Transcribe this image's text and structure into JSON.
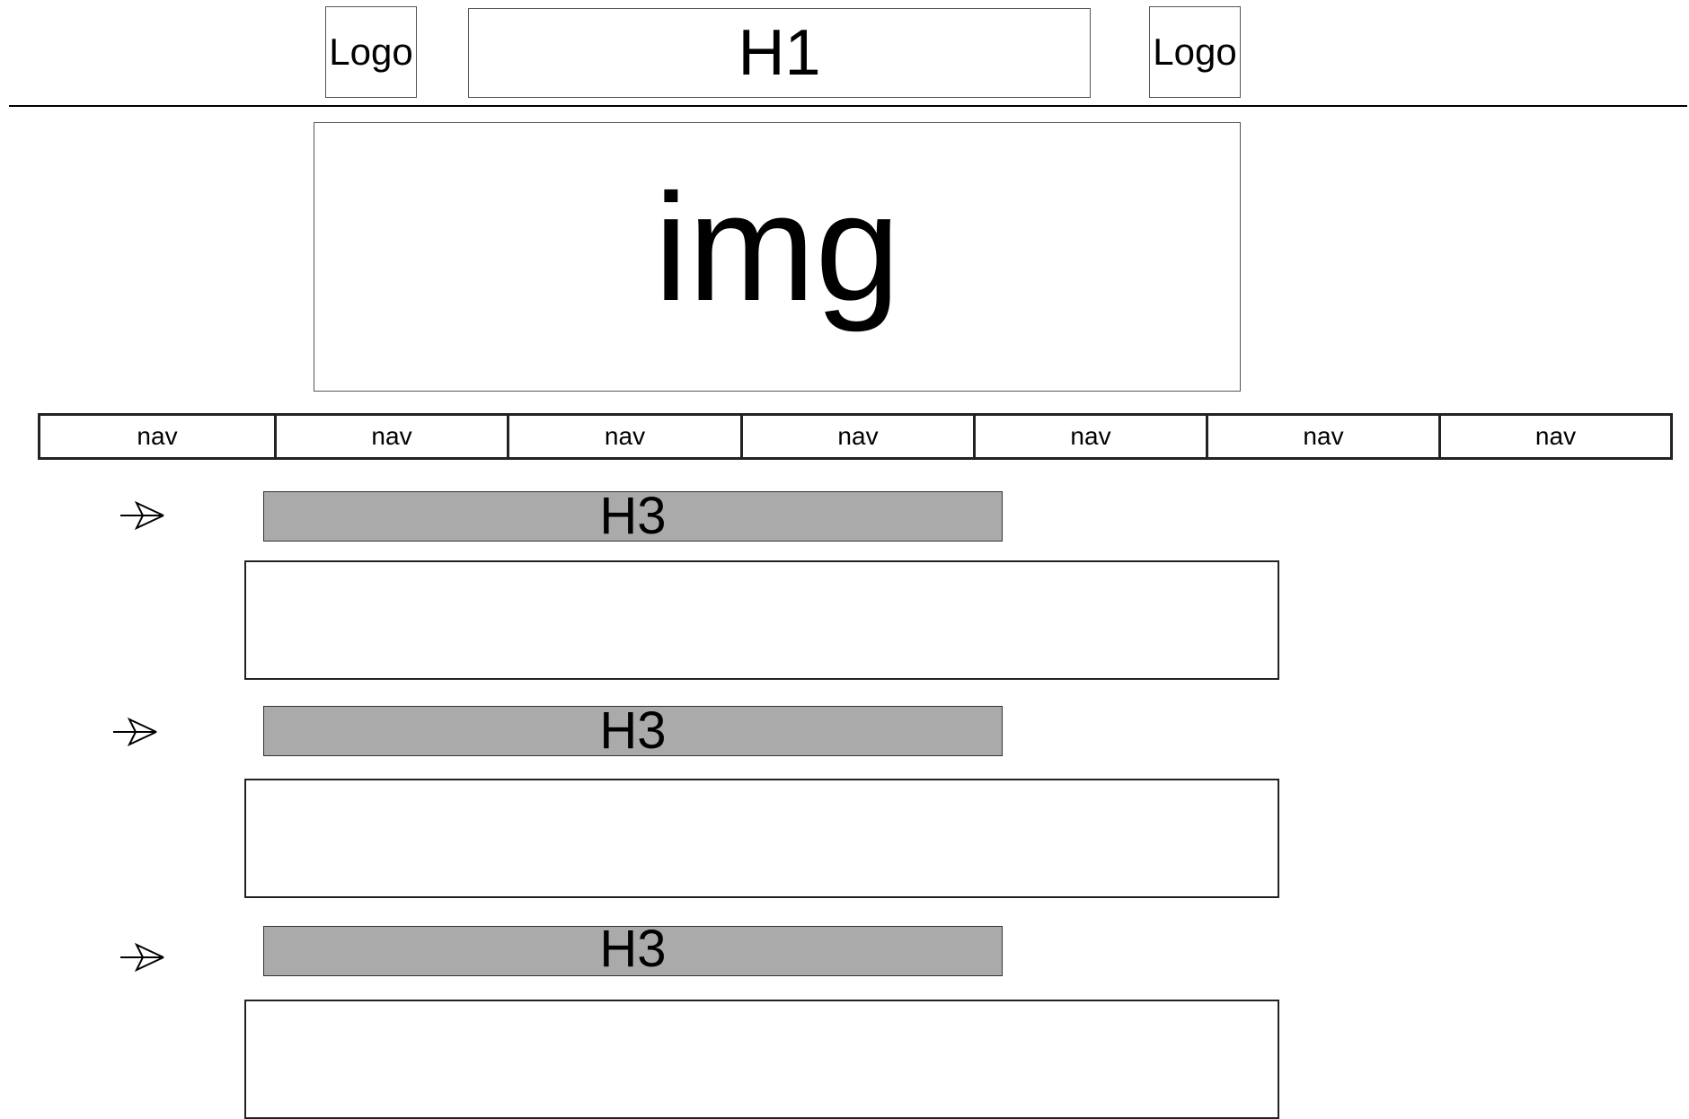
{
  "header": {
    "logo_left": "Logo",
    "title": "H1",
    "logo_right": "Logo"
  },
  "hero": {
    "label": "img"
  },
  "nav": {
    "items": [
      "nav",
      "nav",
      "nav",
      "nav",
      "nav",
      "nav",
      "nav"
    ]
  },
  "sections": [
    {
      "heading": "H3",
      "icon": "arrow-icon"
    },
    {
      "heading": "H3",
      "icon": "arrow-icon"
    },
    {
      "heading": "H3",
      "icon": "arrow-icon"
    }
  ],
  "colors": {
    "heading_bar": "#aaaaaa"
  }
}
